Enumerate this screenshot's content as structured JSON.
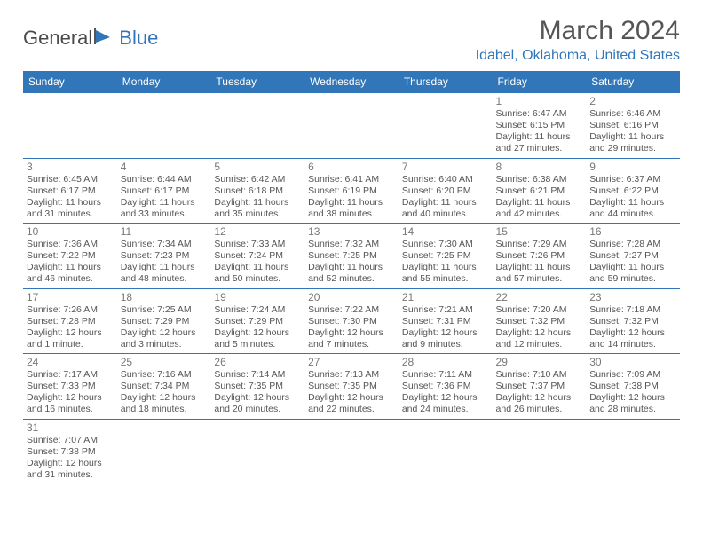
{
  "brand": {
    "part1": "General",
    "part2": "Blue"
  },
  "title": "March 2024",
  "location": "Idabel, Oklahoma, United States",
  "colors": {
    "header_bg": "#3176b8",
    "header_text": "#ffffff",
    "border": "#3176b8",
    "text": "#555555",
    "brand_accent": "#3176b8"
  },
  "days": [
    "Sunday",
    "Monday",
    "Tuesday",
    "Wednesday",
    "Thursday",
    "Friday",
    "Saturday"
  ],
  "weeks": [
    [
      null,
      null,
      null,
      null,
      null,
      {
        "n": "1",
        "sr": "Sunrise: 6:47 AM",
        "ss": "Sunset: 6:15 PM",
        "d1": "Daylight: 11 hours",
        "d2": "and 27 minutes."
      },
      {
        "n": "2",
        "sr": "Sunrise: 6:46 AM",
        "ss": "Sunset: 6:16 PM",
        "d1": "Daylight: 11 hours",
        "d2": "and 29 minutes."
      }
    ],
    [
      {
        "n": "3",
        "sr": "Sunrise: 6:45 AM",
        "ss": "Sunset: 6:17 PM",
        "d1": "Daylight: 11 hours",
        "d2": "and 31 minutes."
      },
      {
        "n": "4",
        "sr": "Sunrise: 6:44 AM",
        "ss": "Sunset: 6:17 PM",
        "d1": "Daylight: 11 hours",
        "d2": "and 33 minutes."
      },
      {
        "n": "5",
        "sr": "Sunrise: 6:42 AM",
        "ss": "Sunset: 6:18 PM",
        "d1": "Daylight: 11 hours",
        "d2": "and 35 minutes."
      },
      {
        "n": "6",
        "sr": "Sunrise: 6:41 AM",
        "ss": "Sunset: 6:19 PM",
        "d1": "Daylight: 11 hours",
        "d2": "and 38 minutes."
      },
      {
        "n": "7",
        "sr": "Sunrise: 6:40 AM",
        "ss": "Sunset: 6:20 PM",
        "d1": "Daylight: 11 hours",
        "d2": "and 40 minutes."
      },
      {
        "n": "8",
        "sr": "Sunrise: 6:38 AM",
        "ss": "Sunset: 6:21 PM",
        "d1": "Daylight: 11 hours",
        "d2": "and 42 minutes."
      },
      {
        "n": "9",
        "sr": "Sunrise: 6:37 AM",
        "ss": "Sunset: 6:22 PM",
        "d1": "Daylight: 11 hours",
        "d2": "and 44 minutes."
      }
    ],
    [
      {
        "n": "10",
        "sr": "Sunrise: 7:36 AM",
        "ss": "Sunset: 7:22 PM",
        "d1": "Daylight: 11 hours",
        "d2": "and 46 minutes."
      },
      {
        "n": "11",
        "sr": "Sunrise: 7:34 AM",
        "ss": "Sunset: 7:23 PM",
        "d1": "Daylight: 11 hours",
        "d2": "and 48 minutes."
      },
      {
        "n": "12",
        "sr": "Sunrise: 7:33 AM",
        "ss": "Sunset: 7:24 PM",
        "d1": "Daylight: 11 hours",
        "d2": "and 50 minutes."
      },
      {
        "n": "13",
        "sr": "Sunrise: 7:32 AM",
        "ss": "Sunset: 7:25 PM",
        "d1": "Daylight: 11 hours",
        "d2": "and 52 minutes."
      },
      {
        "n": "14",
        "sr": "Sunrise: 7:30 AM",
        "ss": "Sunset: 7:25 PM",
        "d1": "Daylight: 11 hours",
        "d2": "and 55 minutes."
      },
      {
        "n": "15",
        "sr": "Sunrise: 7:29 AM",
        "ss": "Sunset: 7:26 PM",
        "d1": "Daylight: 11 hours",
        "d2": "and 57 minutes."
      },
      {
        "n": "16",
        "sr": "Sunrise: 7:28 AM",
        "ss": "Sunset: 7:27 PM",
        "d1": "Daylight: 11 hours",
        "d2": "and 59 minutes."
      }
    ],
    [
      {
        "n": "17",
        "sr": "Sunrise: 7:26 AM",
        "ss": "Sunset: 7:28 PM",
        "d1": "Daylight: 12 hours",
        "d2": "and 1 minute."
      },
      {
        "n": "18",
        "sr": "Sunrise: 7:25 AM",
        "ss": "Sunset: 7:29 PM",
        "d1": "Daylight: 12 hours",
        "d2": "and 3 minutes."
      },
      {
        "n": "19",
        "sr": "Sunrise: 7:24 AM",
        "ss": "Sunset: 7:29 PM",
        "d1": "Daylight: 12 hours",
        "d2": "and 5 minutes."
      },
      {
        "n": "20",
        "sr": "Sunrise: 7:22 AM",
        "ss": "Sunset: 7:30 PM",
        "d1": "Daylight: 12 hours",
        "d2": "and 7 minutes."
      },
      {
        "n": "21",
        "sr": "Sunrise: 7:21 AM",
        "ss": "Sunset: 7:31 PM",
        "d1": "Daylight: 12 hours",
        "d2": "and 9 minutes."
      },
      {
        "n": "22",
        "sr": "Sunrise: 7:20 AM",
        "ss": "Sunset: 7:32 PM",
        "d1": "Daylight: 12 hours",
        "d2": "and 12 minutes."
      },
      {
        "n": "23",
        "sr": "Sunrise: 7:18 AM",
        "ss": "Sunset: 7:32 PM",
        "d1": "Daylight: 12 hours",
        "d2": "and 14 minutes."
      }
    ],
    [
      {
        "n": "24",
        "sr": "Sunrise: 7:17 AM",
        "ss": "Sunset: 7:33 PM",
        "d1": "Daylight: 12 hours",
        "d2": "and 16 minutes."
      },
      {
        "n": "25",
        "sr": "Sunrise: 7:16 AM",
        "ss": "Sunset: 7:34 PM",
        "d1": "Daylight: 12 hours",
        "d2": "and 18 minutes."
      },
      {
        "n": "26",
        "sr": "Sunrise: 7:14 AM",
        "ss": "Sunset: 7:35 PM",
        "d1": "Daylight: 12 hours",
        "d2": "and 20 minutes."
      },
      {
        "n": "27",
        "sr": "Sunrise: 7:13 AM",
        "ss": "Sunset: 7:35 PM",
        "d1": "Daylight: 12 hours",
        "d2": "and 22 minutes."
      },
      {
        "n": "28",
        "sr": "Sunrise: 7:11 AM",
        "ss": "Sunset: 7:36 PM",
        "d1": "Daylight: 12 hours",
        "d2": "and 24 minutes."
      },
      {
        "n": "29",
        "sr": "Sunrise: 7:10 AM",
        "ss": "Sunset: 7:37 PM",
        "d1": "Daylight: 12 hours",
        "d2": "and 26 minutes."
      },
      {
        "n": "30",
        "sr": "Sunrise: 7:09 AM",
        "ss": "Sunset: 7:38 PM",
        "d1": "Daylight: 12 hours",
        "d2": "and 28 minutes."
      }
    ],
    [
      {
        "n": "31",
        "sr": "Sunrise: 7:07 AM",
        "ss": "Sunset: 7:38 PM",
        "d1": "Daylight: 12 hours",
        "d2": "and 31 minutes."
      },
      null,
      null,
      null,
      null,
      null,
      null
    ]
  ]
}
